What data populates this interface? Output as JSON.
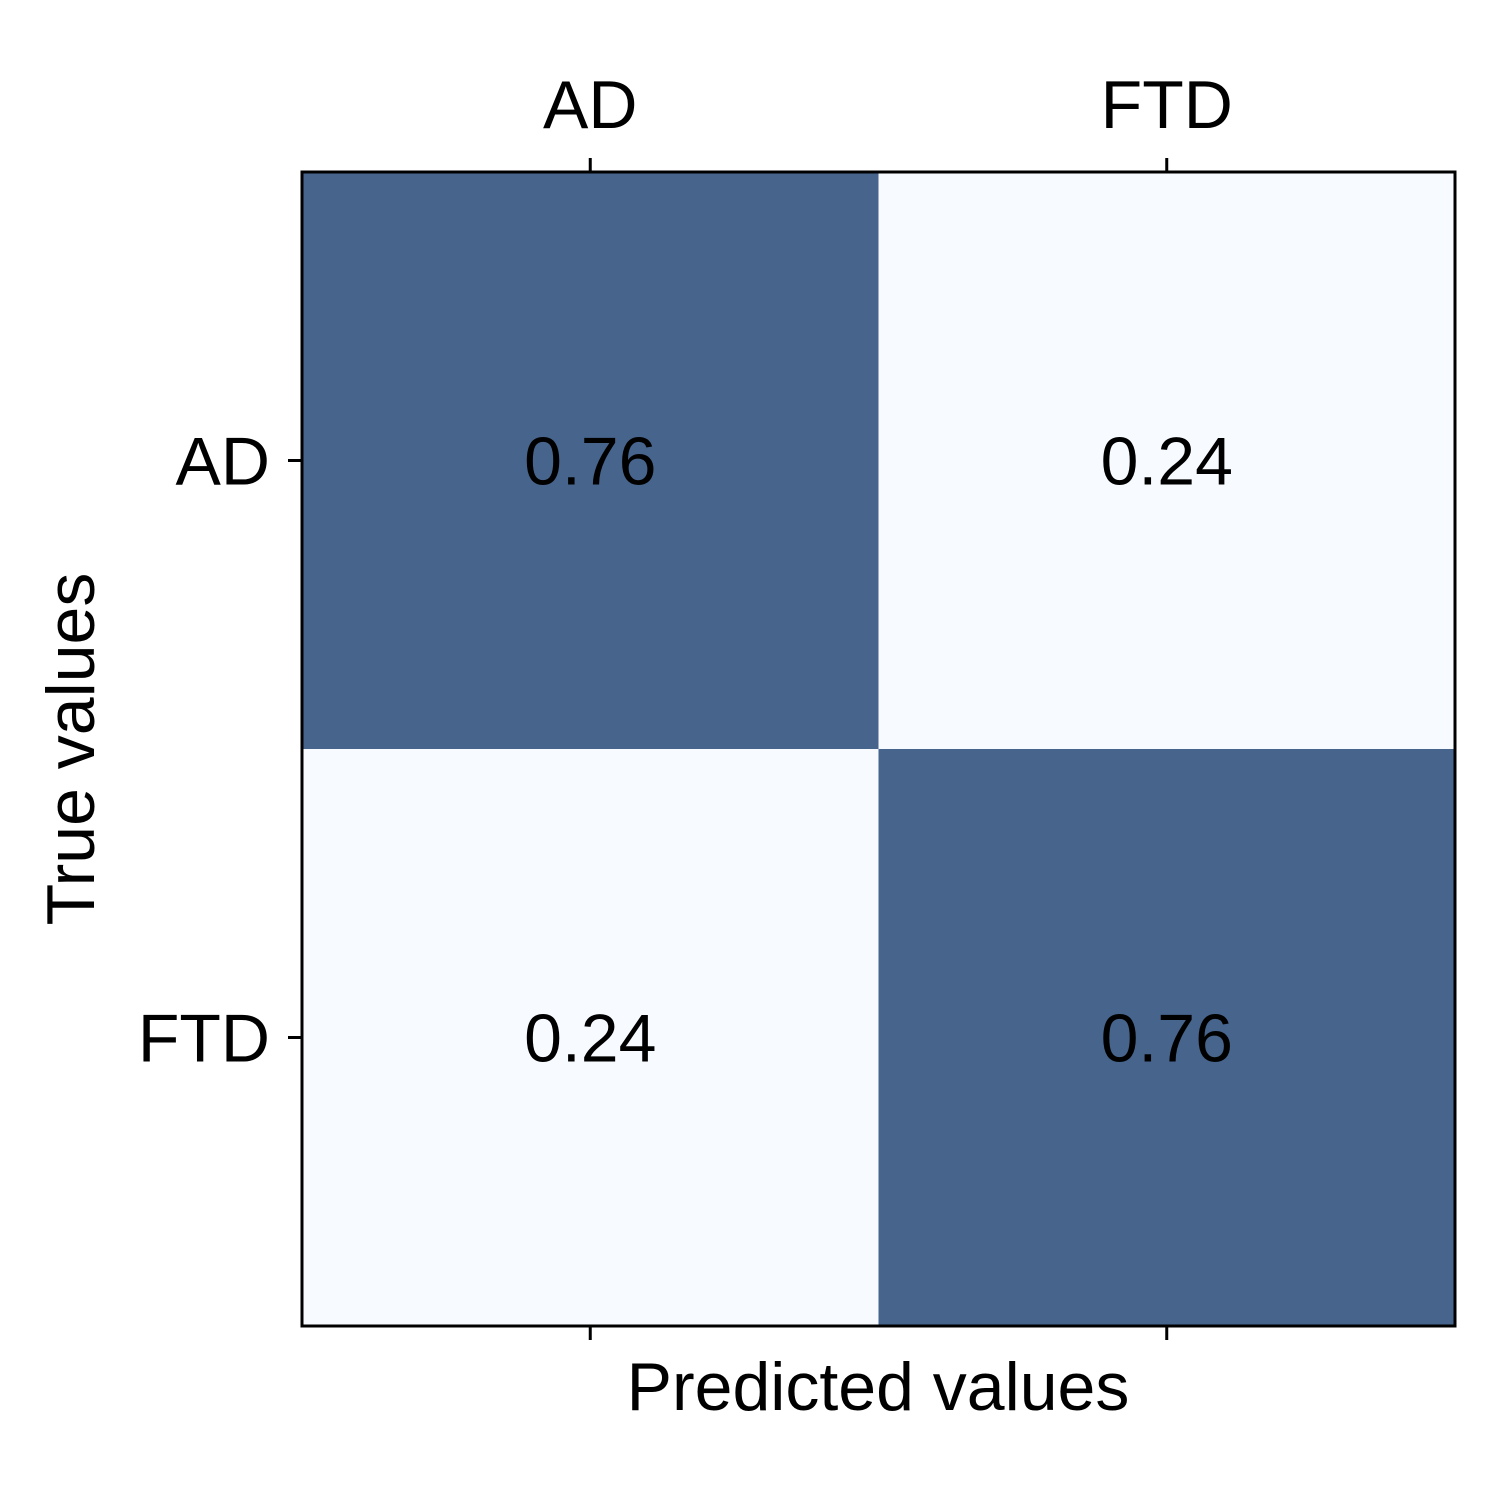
{
  "chart_data": {
    "type": "heatmap",
    "title": "",
    "xlabel": "Predicted values",
    "ylabel": "True values",
    "x_categories": [
      "AD",
      "FTD"
    ],
    "y_categories": [
      "AD",
      "FTD"
    ],
    "values": [
      [
        0.76,
        0.24
      ],
      [
        0.24,
        0.76
      ]
    ],
    "cell_labels": [
      [
        "0.76",
        "0.24"
      ],
      [
        "0.24",
        "0.76"
      ]
    ],
    "x_tick_position": "top",
    "colors": {
      "high": "#46648c",
      "low": "#f7fbff",
      "frame": "#000000"
    },
    "grid": false
  }
}
